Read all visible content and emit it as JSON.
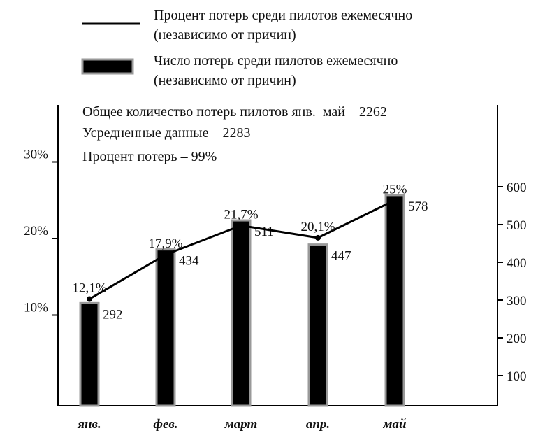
{
  "legend": {
    "line_label_1": "Процент потерь среди пилотов ежемесячно",
    "line_label_2": "(независимо от причин)",
    "bar_label_1": "Число потерь среди пилотов ежемесячно",
    "bar_label_2": "(независимо от причин)"
  },
  "notes": [
    "Общее количество потерь пилотов янв.–май – 2262",
    "Усредненные данные  – 2283",
    "Процент потерь  – 99%"
  ],
  "colors": {
    "bar_fill": "#000000",
    "bar_border": "#999999",
    "line": "#000000"
  },
  "chart_data": {
    "type": "bar",
    "categories": [
      "янв.",
      "фев.",
      "март",
      "апр.",
      "май"
    ],
    "series": [
      {
        "type": "bar",
        "axis": "right",
        "values": [
          292,
          434,
          511,
          447,
          578
        ],
        "labels": [
          "292",
          "434",
          "511",
          "447",
          "578"
        ]
      },
      {
        "type": "line",
        "axis": "left",
        "values": [
          12.1,
          17.9,
          21.7,
          20.1,
          25
        ],
        "labels": [
          "12,1%",
          "17,9%",
          "21,7%",
          "20,1%",
          "25%"
        ]
      }
    ],
    "y_left": {
      "range": [
        0,
        30
      ],
      "ticks": [
        10,
        20,
        30
      ],
      "tick_labels": [
        "10%",
        "20%",
        "30%"
      ]
    },
    "y_right": {
      "range": [
        0,
        600
      ],
      "ticks": [
        100,
        200,
        300,
        400,
        500,
        600
      ],
      "tick_labels": [
        "100",
        "200",
        "300",
        "400",
        "500",
        "600"
      ]
    },
    "grid": false,
    "legend_position": "top"
  }
}
